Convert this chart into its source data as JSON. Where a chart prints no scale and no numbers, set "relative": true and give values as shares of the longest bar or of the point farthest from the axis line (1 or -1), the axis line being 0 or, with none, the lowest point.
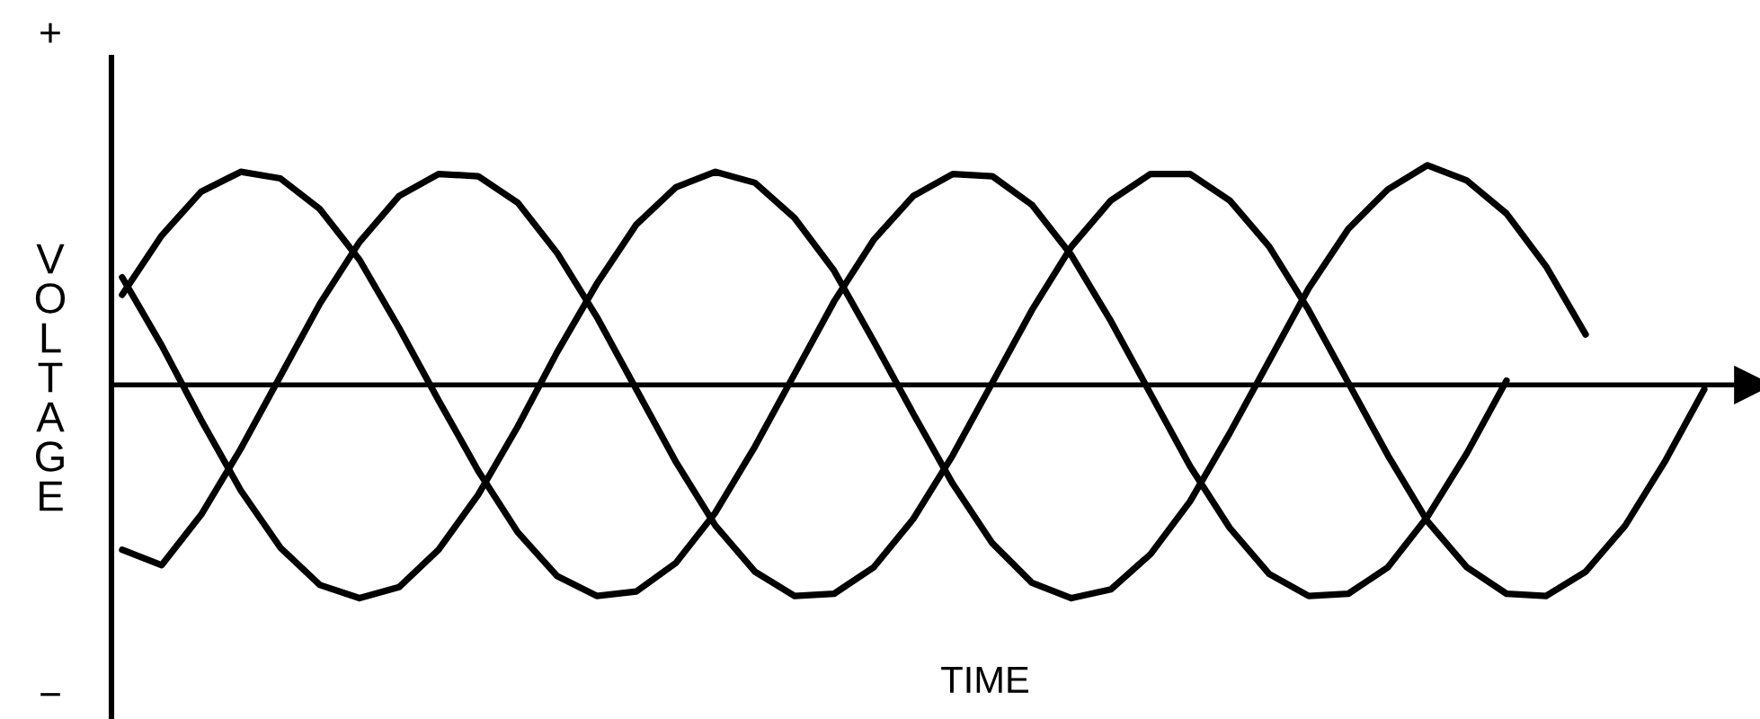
{
  "chart_data": {
    "type": "line",
    "xlabel": "TIME",
    "ylabel": "VOLTAGE",
    "annotations": [
      "+",
      "−"
    ],
    "relative": true,
    "categories": [
      null,
      null,
      null,
      null,
      null,
      null,
      null,
      null,
      null,
      null,
      null,
      null,
      null,
      null,
      null,
      null,
      null,
      null,
      null,
      null,
      null,
      null,
      null,
      null,
      null,
      null,
      null,
      null,
      null,
      null,
      null,
      null,
      null,
      null,
      null,
      null,
      null,
      null,
      null,
      null,
      null
    ],
    "series": [
      {
        "color": "#000000",
        "values": [
          0.41,
          0.68,
          0.88,
          0.97,
          0.94,
          0.8,
          0.57,
          0.26,
          -0.07,
          -0.39,
          -0.67,
          -0.87,
          -0.96,
          -0.94,
          -0.81,
          -0.58,
          -0.28,
          0.05,
          0.38,
          0.66,
          0.86,
          0.96,
          0.95,
          0.82,
          0.59,
          0.29,
          -0.04,
          -0.37,
          -0.65,
          -0.86,
          -0.96,
          -0.95,
          -0.83,
          -0.6,
          -0.31,
          0.02,
          null,
          null,
          null,
          null,
          null
        ]
      },
      {
        "color": "#000000",
        "values": [
          0.49,
          0.18,
          -0.16,
          -0.48,
          -0.74,
          -0.91,
          -0.97,
          -0.92,
          -0.75,
          -0.5,
          -0.19,
          0.15,
          0.46,
          0.73,
          0.9,
          0.97,
          0.92,
          0.76,
          0.52,
          0.2,
          -0.13,
          -0.45,
          -0.72,
          -0.9,
          -0.97,
          -0.93,
          -0.77,
          -0.53,
          -0.22,
          0.11,
          0.44,
          0.71,
          0.89,
          1.0,
          0.93,
          0.78,
          0.54,
          0.23,
          null,
          null,
          null
        ]
      },
      {
        "color": "#000000",
        "values": [
          -0.75,
          -0.82,
          -0.59,
          -0.29,
          0.04,
          0.37,
          0.65,
          0.86,
          0.96,
          0.95,
          0.83,
          0.6,
          0.31,
          -0.02,
          -0.35,
          -0.64,
          -0.85,
          -0.96,
          -0.95,
          -0.83,
          -0.61,
          -0.32,
          0.01,
          0.34,
          0.63,
          0.84,
          0.96,
          0.96,
          0.84,
          0.63,
          0.34,
          0.01,
          -0.32,
          -0.62,
          -0.83,
          -0.95,
          -0.96,
          -0.85,
          -0.64,
          -0.35,
          -0.02
        ]
      }
    ]
  }
}
